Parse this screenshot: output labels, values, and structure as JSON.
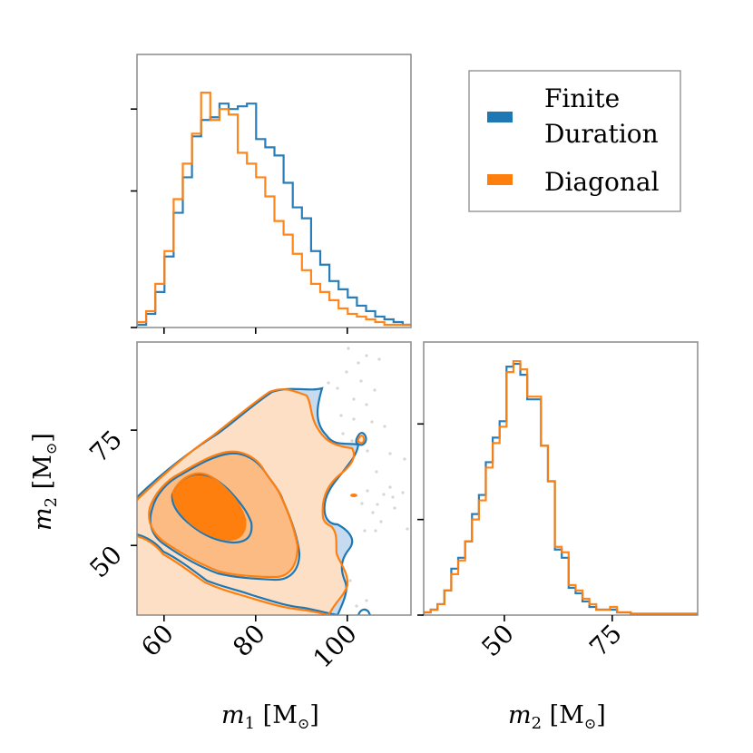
{
  "chart_data": {
    "type": "corner",
    "colors": {
      "finite_duration": "#1f77b4",
      "diagonal": "#ff7f0e",
      "contour_fill_light": "#fddfc6",
      "contour_fill_mid": "#fdbb84",
      "contour_fill_dark": "#ff7f0e",
      "blue_fill_light": "#c6dbef",
      "scatter": "#d9d4cf"
    },
    "legend": {
      "placement": "top-right",
      "entries": [
        {
          "label_lines": [
            "Finite",
            "Duration"
          ],
          "color": "#1f77b4"
        },
        {
          "label_lines": [
            "Diagonal"
          ],
          "color": "#ff7f0e"
        }
      ]
    },
    "panels": [
      {
        "id": "m1-marginal",
        "type": "step-histogram",
        "xlabel": "m1 [M☉]",
        "xlim": [
          54.1,
          113.9
        ],
        "xticks": [
          60,
          80,
          100
        ],
        "xtick_labels_visible": false,
        "ylim": [
          0,
          1.0
        ],
        "yticks": [
          0.5,
          0.8
        ],
        "ytick_labels_visible": false,
        "bin_edges_start": 54.1,
        "bin_width": 2.0,
        "series": [
          {
            "name": "Finite Duration",
            "values": [
              0.01,
              0.05,
              0.13,
              0.26,
              0.42,
              0.55,
              0.7,
              0.76,
              0.77,
              0.82,
              0.8,
              0.81,
              0.82,
              0.69,
              0.66,
              0.63,
              0.53,
              0.44,
              0.4,
              0.28,
              0.23,
              0.17,
              0.14,
              0.11,
              0.08,
              0.06,
              0.04,
              0.03,
              0.02,
              0.01
            ]
          },
          {
            "name": "Diagonal",
            "values": [
              0.02,
              0.06,
              0.16,
              0.28,
              0.47,
              0.6,
              0.71,
              0.86,
              0.76,
              0.8,
              0.78,
              0.64,
              0.6,
              0.55,
              0.48,
              0.39,
              0.34,
              0.27,
              0.21,
              0.16,
              0.13,
              0.1,
              0.07,
              0.05,
              0.04,
              0.03,
              0.02,
              0.01,
              0.01,
              0.01
            ]
          }
        ]
      },
      {
        "id": "m1-m2-joint",
        "type": "contour",
        "xlabel": "m1 [M☉]",
        "ylabel": "m2 [M☉]",
        "xlim": [
          54.1,
          113.9
        ],
        "ylim": [
          34.9,
          94.1
        ],
        "xticks": [
          60,
          80,
          100
        ],
        "xtick_labels": [
          "60",
          "80",
          "100"
        ],
        "yticks": [
          50,
          75
        ],
        "ytick_labels": [
          "50",
          "75"
        ],
        "levels": [
          "inner",
          "middle",
          "outer"
        ],
        "series": [
          {
            "name": "Finite Duration"
          },
          {
            "name": "Diagonal"
          }
        ]
      },
      {
        "id": "m2-marginal",
        "type": "step-histogram",
        "xlabel": "m2 [M☉]",
        "xlim": [
          31.3,
          94.8
        ],
        "xticks": [
          50,
          75
        ],
        "xtick_labels": [
          "50",
          "75"
        ],
        "ylim": [
          0,
          1.0
        ],
        "yticks": [
          0.35,
          0.7
        ],
        "ytick_labels_visible": false,
        "bin_edges_start": 31.3,
        "bin_width": 1.6,
        "series": [
          {
            "name": "Finite Duration",
            "values": [
              0.01,
              0.02,
              0.04,
              0.09,
              0.17,
              0.21,
              0.27,
              0.37,
              0.44,
              0.56,
              0.65,
              0.71,
              0.91,
              0.92,
              0.88,
              0.79,
              0.79,
              0.62,
              0.49,
              0.24,
              0.21,
              0.1,
              0.08,
              0.05,
              0.03,
              0.02,
              0.02,
              0.02,
              0.01,
              0.01,
              0.005,
              0.005,
              0.005,
              0.005,
              0.005,
              0.005,
              0.005,
              0.005,
              0.005,
              0.005
            ]
          },
          {
            "name": "Diagonal",
            "values": [
              0.01,
              0.02,
              0.04,
              0.09,
              0.15,
              0.2,
              0.27,
              0.35,
              0.42,
              0.54,
              0.63,
              0.69,
              0.89,
              0.93,
              0.9,
              0.8,
              0.8,
              0.62,
              0.49,
              0.25,
              0.23,
              0.11,
              0.09,
              0.06,
              0.04,
              0.02,
              0.02,
              0.03,
              0.01,
              0.01,
              0.005,
              0.005,
              0.005,
              0.005,
              0.005,
              0.005,
              0.005,
              0.005,
              0.005,
              0.005
            ]
          }
        ]
      }
    ],
    "axis_labels": {
      "x_left": {
        "var": "m",
        "sub": "1",
        "unit": "[M",
        "unit_sub": "⊙",
        "close": "]"
      },
      "x_right": {
        "var": "m",
        "sub": "2",
        "unit": "[M",
        "unit_sub": "⊙",
        "close": "]"
      },
      "y_left": {
        "var": "m",
        "sub": "2",
        "unit": "[M",
        "unit_sub": "⊙",
        "close": "]"
      }
    }
  },
  "legend_labels": {
    "finite_line1": "Finite",
    "finite_line2": "Duration",
    "diagonal": "Diagonal"
  },
  "tick_labels": {
    "x1": [
      "60",
      "80",
      "100"
    ],
    "y2": [
      "50",
      "75"
    ],
    "x2": [
      "50",
      "75"
    ]
  }
}
